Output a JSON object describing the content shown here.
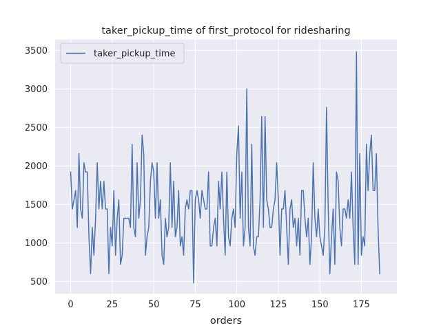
{
  "chart_data": {
    "type": "line",
    "title": "taker_pickup_time of first_protocol for ridesharing",
    "xlabel": "orders",
    "ylabel": "",
    "xlim": [
      -9.35,
      196.35
    ],
    "ylim": [
      340,
      3640
    ],
    "xticks": [
      0,
      25,
      50,
      75,
      100,
      125,
      150,
      175
    ],
    "yticks": [
      500,
      1000,
      1500,
      2000,
      2500,
      3000,
      3500
    ],
    "grid": true,
    "legend_position": "top-left",
    "colors": {
      "line": "#4c72b0",
      "plot_bg": "#eaeaf2",
      "grid": "#ffffff"
    },
    "series": [
      {
        "name": "taker_pickup_time",
        "x_start": 0,
        "values": [
          1920,
          1440,
          1560,
          1680,
          1200,
          2160,
          1440,
          1320,
          2040,
          1920,
          1920,
          1080,
          600,
          1200,
          840,
          1320,
          2040,
          1440,
          1800,
          1440,
          1800,
          1440,
          1440,
          600,
          1200,
          960,
          1680,
          840,
          1320,
          1560,
          720,
          840,
          1320,
          1320,
          1320,
          1320,
          1200,
          2280,
          1200,
          1080,
          2040,
          1320,
          1560,
          2400,
          2160,
          840,
          1080,
          1200,
          1800,
          2040,
          1920,
          1320,
          2040,
          1320,
          1560,
          840,
          720,
          1320,
          1080,
          1200,
          2040,
          1200,
          1800,
          1080,
          1200,
          1680,
          960,
          1080,
          840,
          1440,
          1560,
          1440,
          1680,
          1680,
          480,
          1560,
          1680,
          1560,
          1320,
          1680,
          1560,
          1440,
          1440,
          1920,
          960,
          960,
          1200,
          1320,
          960,
          1800,
          1440,
          1920,
          1320,
          840,
          1920,
          1080,
          960,
          1320,
          1440,
          1200,
          2160,
          2520,
          1320,
          1920,
          960,
          1200,
          3000,
          1200,
          960,
          2280,
          960,
          840,
          1080,
          1080,
          1560,
          2640,
          1200,
          2640,
          1560,
          1440,
          1200,
          1200,
          1440,
          1560,
          2040,
          1560,
          840,
          1440,
          1440,
          1680,
          1200,
          720,
          1440,
          1560,
          1200,
          1320,
          960,
          1320,
          840,
          1680,
          1680,
          1320,
          1080,
          1320,
          720,
          1080,
          2040,
          1320,
          1080,
          1440,
          1080,
          960,
          840,
          1200,
          2760,
          1440,
          600,
          1080,
          1440,
          720,
          1920,
          1800,
          1200,
          960,
          1440,
          1440,
          1320,
          1560,
          1320,
          1920,
          1200,
          720,
          3480,
          720,
          2160,
          840,
          1080,
          960,
          2280,
          1680,
          2160,
          2400,
          1680,
          1680,
          2160,
          1200,
          600
        ]
      }
    ]
  }
}
